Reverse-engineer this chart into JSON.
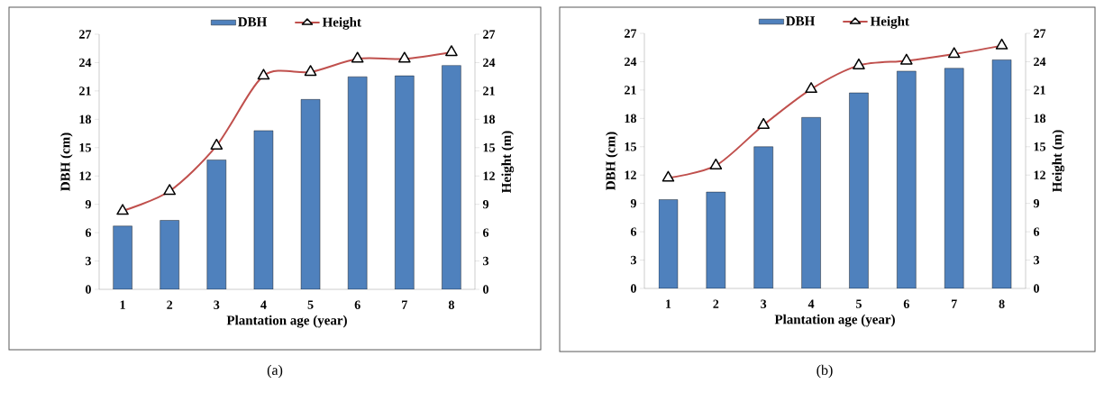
{
  "chart_data": [
    {
      "type": "bar",
      "categories": [
        "1",
        "2",
        "3",
        "4",
        "5",
        "6",
        "7",
        "8"
      ],
      "xlabel": "Plantation age (year)",
      "ylabel": "DBH (cm)",
      "y2label": "Height (m)",
      "series": [
        {
          "name": "DBH",
          "color": "#4f81bd",
          "values": [
            6.7,
            7.3,
            13.7,
            16.8,
            20.1,
            22.5,
            22.6,
            23.7
          ]
        },
        {
          "name": "Height",
          "type": "line",
          "axis": "y2",
          "color": "#c0504d",
          "marker": "triangle",
          "line_style": "solid",
          "values": [
            8.3,
            10.4,
            15.2,
            22.6,
            23.0,
            24.4,
            24.4,
            25.1
          ]
        }
      ],
      "ylim": [
        0,
        27
      ],
      "yticks": [
        0,
        3,
        6,
        9,
        12,
        15,
        18,
        21,
        24,
        27
      ],
      "y2lim": [
        0,
        27
      ],
      "y2ticks": [
        0,
        3,
        6,
        9,
        12,
        15,
        18,
        21,
        24,
        27
      ],
      "legend": "top",
      "annotations": [
        "(a)"
      ]
    },
    {
      "type": "bar",
      "categories": [
        "1",
        "2",
        "3",
        "4",
        "5",
        "6",
        "7",
        "8"
      ],
      "xlabel": "Plantation age (year)",
      "ylabel": "DBH (cm)",
      "y2label": "Height (m)",
      "series": [
        {
          "name": "DBH",
          "color": "#4f81bd",
          "values": [
            9.4,
            10.2,
            15.0,
            18.1,
            20.7,
            23.0,
            23.3,
            24.2
          ]
        },
        {
          "name": "Height",
          "type": "line",
          "axis": "y2",
          "color": "#c0504d",
          "marker": "triangle",
          "line_style": "solid",
          "values": [
            11.7,
            13.0,
            17.3,
            21.1,
            23.6,
            24.1,
            24.8,
            25.7
          ]
        }
      ],
      "ylim": [
        0,
        27
      ],
      "yticks": [
        0,
        3,
        6,
        9,
        12,
        15,
        18,
        21,
        24,
        27
      ],
      "y2lim": [
        0,
        27
      ],
      "y2ticks": [
        0,
        3,
        6,
        9,
        12,
        15,
        18,
        21,
        24,
        27
      ],
      "legend": "top",
      "annotations": [
        "(b)"
      ]
    }
  ]
}
